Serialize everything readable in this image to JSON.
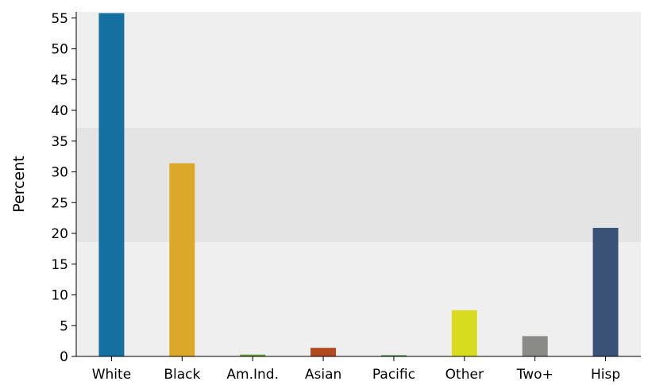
{
  "chart_data": {
    "type": "bar",
    "title": "",
    "xlabel": "",
    "ylabel": "Percent",
    "ylim": [
      0,
      56
    ],
    "yticks": [
      0,
      5,
      10,
      15,
      20,
      25,
      30,
      35,
      40,
      45,
      50,
      55
    ],
    "grid": false,
    "legend": "none",
    "shaded_band": [
      18.6,
      37.2
    ],
    "categories": [
      "White",
      "Black",
      "Am.Ind.",
      "Asian",
      "Pacific",
      "Other",
      "Two+",
      "Hisp"
    ],
    "values": [
      55.8,
      31.4,
      0.3,
      1.4,
      0.2,
      7.5,
      3.3,
      20.9
    ],
    "colors": [
      "#1470a0",
      "#dca82a",
      "#6a9a3a",
      "#b24a20",
      "#4f8a4f",
      "#d8dc20",
      "#8a8a86",
      "#3a5275"
    ]
  }
}
